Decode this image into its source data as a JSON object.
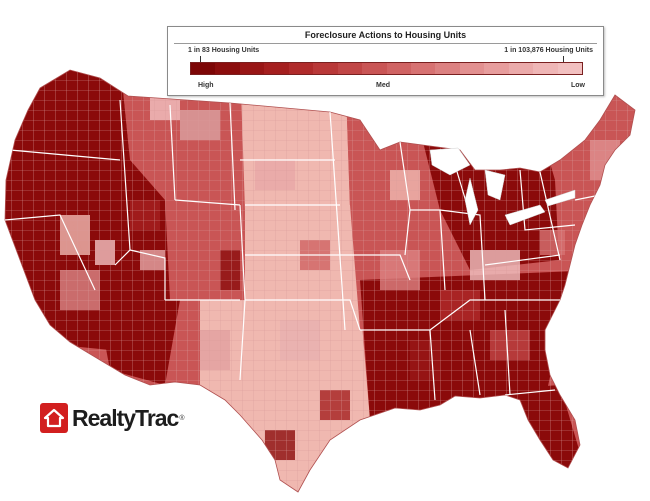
{
  "legend": {
    "title": "Foreclosure Actions to Housing Units",
    "max_label": "1 in 83 Housing Units",
    "min_label": "1 in 103,876 Housing Units",
    "high": "High",
    "med": "Med",
    "low": "Low",
    "scale_colors": [
      "#7d0606",
      "#8c0d0d",
      "#991616",
      "#a51f1f",
      "#b02b2b",
      "#b93838",
      "#c14646",
      "#c95555",
      "#d06363",
      "#d77272",
      "#dc8181",
      "#e29090",
      "#e79d9d",
      "#ebaaaa",
      "#efb6b6",
      "#f2c0c0"
    ]
  },
  "map": {
    "states_labels": [],
    "palette": {
      "background": "#ffffff",
      "border_county": "#e0a0a0",
      "border_state": "#ffffff",
      "high": "#8b0a0a",
      "med": "#c95555",
      "low": "#f0b8b0"
    },
    "regions": [
      {
        "name": "pacific-northwest",
        "level": "high"
      },
      {
        "name": "california",
        "level": "high"
      },
      {
        "name": "nevada-arizona",
        "level": "high"
      },
      {
        "name": "mountain-west",
        "level": "med"
      },
      {
        "name": "northern-plains",
        "level": "low"
      },
      {
        "name": "great-plains",
        "level": "low"
      },
      {
        "name": "texas",
        "level": "low"
      },
      {
        "name": "midwest",
        "level": "med"
      },
      {
        "name": "great-lakes",
        "level": "high"
      },
      {
        "name": "northeast",
        "level": "med"
      },
      {
        "name": "southeast",
        "level": "high"
      },
      {
        "name": "florida",
        "level": "high"
      }
    ]
  },
  "logo": {
    "text": "RealtyTrac",
    "reg": "®",
    "icon": "house-icon"
  }
}
